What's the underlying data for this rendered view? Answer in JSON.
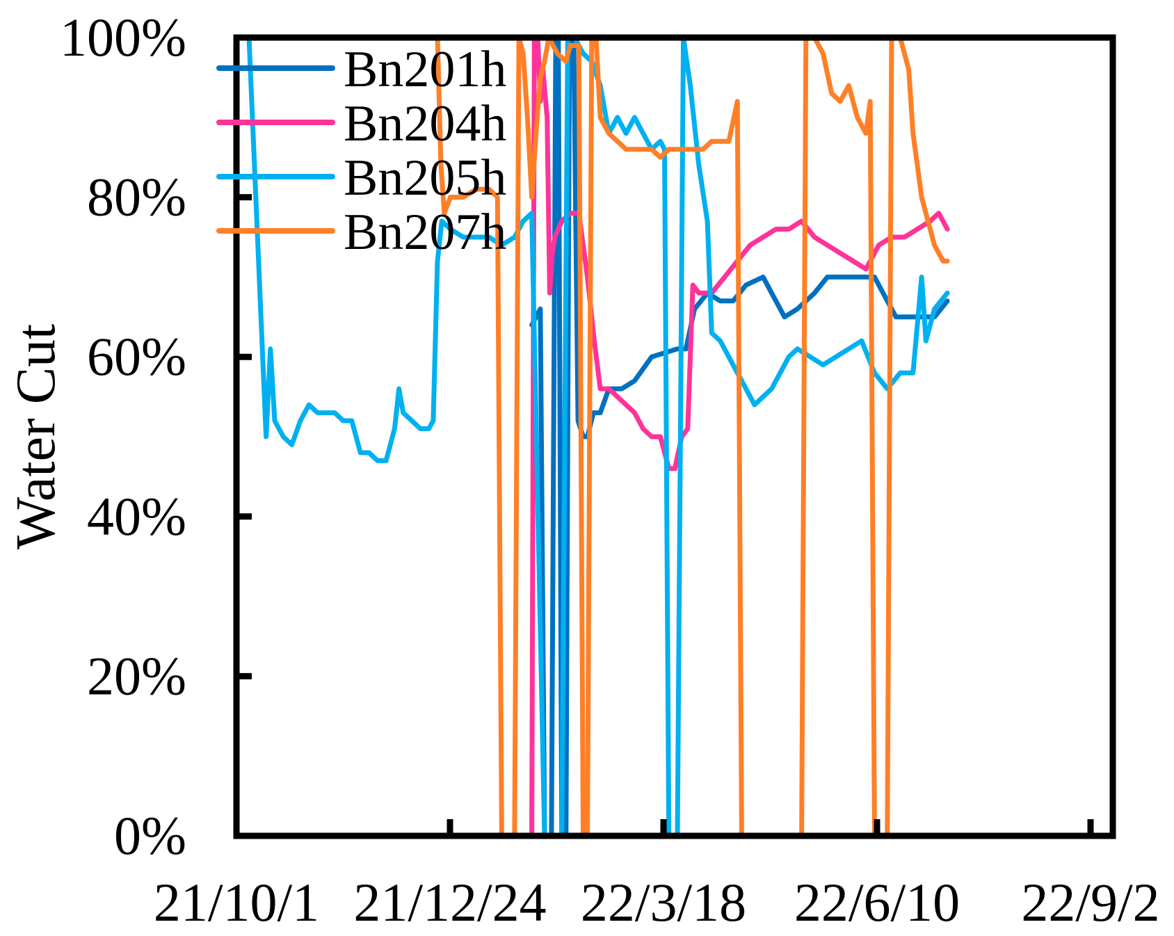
{
  "chart_data": {
    "type": "line",
    "ylabel": "Water Cut",
    "xlabel": "",
    "x_tick_labels": [
      "21/10/1",
      "21/12/24",
      "22/3/18",
      "22/6/10",
      "22/9/2"
    ],
    "y_tick_labels": [
      "0%",
      "20%",
      "40%",
      "60%",
      "80%",
      "100%"
    ],
    "ylim": [
      0,
      100
    ],
    "legend_position": "top-left",
    "grid": false,
    "series": [
      {
        "name": "Bn201h",
        "color": "#0070c0",
        "points": [
          [
            0.33,
            64
          ],
          [
            0.34,
            66
          ],
          [
            0.345,
            0
          ],
          [
            0.353,
            0
          ],
          [
            0.358,
            100
          ],
          [
            0.361,
            100
          ],
          [
            0.365,
            0
          ],
          [
            0.37,
            0
          ],
          [
            0.374,
            100
          ],
          [
            0.379,
            100
          ],
          [
            0.384,
            52
          ],
          [
            0.39,
            50
          ],
          [
            0.395,
            50
          ],
          [
            0.402,
            53
          ],
          [
            0.41,
            53
          ],
          [
            0.42,
            56
          ],
          [
            0.435,
            56
          ],
          [
            0.45,
            57
          ],
          [
            0.47,
            60
          ],
          [
            0.5,
            61
          ],
          [
            0.51,
            61
          ],
          [
            0.52,
            66
          ],
          [
            0.535,
            68
          ],
          [
            0.55,
            67
          ],
          [
            0.565,
            67
          ],
          [
            0.58,
            69
          ],
          [
            0.6,
            70
          ],
          [
            0.61,
            68
          ],
          [
            0.625,
            65
          ],
          [
            0.64,
            66
          ],
          [
            0.66,
            68
          ],
          [
            0.675,
            70
          ],
          [
            0.695,
            70
          ],
          [
            0.715,
            70
          ],
          [
            0.73,
            70
          ],
          [
            0.74,
            68
          ],
          [
            0.755,
            65
          ],
          [
            0.77,
            65
          ],
          [
            0.785,
            65
          ],
          [
            0.8,
            65
          ],
          [
            0.815,
            67
          ]
        ]
      },
      {
        "name": "Bn204h",
        "color": "#ff3399",
        "points": [
          [
            0.31,
            0
          ],
          [
            0.33,
            0
          ],
          [
            0.333,
            100
          ],
          [
            0.337,
            100
          ],
          [
            0.34,
            92
          ],
          [
            0.343,
            96
          ],
          [
            0.348,
            90
          ],
          [
            0.351,
            68
          ],
          [
            0.354,
            73
          ],
          [
            0.357,
            75
          ],
          [
            0.365,
            77
          ],
          [
            0.375,
            78
          ],
          [
            0.385,
            78
          ],
          [
            0.39,
            74
          ],
          [
            0.395,
            70
          ],
          [
            0.403,
            62
          ],
          [
            0.41,
            56
          ],
          [
            0.42,
            56
          ],
          [
            0.43,
            55
          ],
          [
            0.44,
            54
          ],
          [
            0.45,
            53
          ],
          [
            0.46,
            51
          ],
          [
            0.47,
            50
          ],
          [
            0.48,
            50
          ],
          [
            0.49,
            46
          ],
          [
            0.497,
            46
          ],
          [
            0.505,
            50
          ],
          [
            0.512,
            51
          ],
          [
            0.518,
            69
          ],
          [
            0.525,
            68
          ],
          [
            0.54,
            68
          ],
          [
            0.555,
            70
          ],
          [
            0.57,
            72
          ],
          [
            0.585,
            74
          ],
          [
            0.6,
            75
          ],
          [
            0.615,
            76
          ],
          [
            0.63,
            76
          ],
          [
            0.645,
            77
          ],
          [
            0.66,
            75
          ],
          [
            0.675,
            74
          ],
          [
            0.69,
            73
          ],
          [
            0.705,
            72
          ],
          [
            0.72,
            71
          ],
          [
            0.735,
            74
          ],
          [
            0.75,
            75
          ],
          [
            0.765,
            75
          ],
          [
            0.78,
            76
          ],
          [
            0.795,
            77
          ],
          [
            0.805,
            78
          ],
          [
            0.815,
            76
          ]
        ]
      },
      {
        "name": "Bn205h",
        "color": "#00b0f0",
        "points": [
          [
            0.0,
            100
          ],
          [
            0.01,
            75
          ],
          [
            0.02,
            50
          ],
          [
            0.025,
            61
          ],
          [
            0.03,
            52
          ],
          [
            0.04,
            50
          ],
          [
            0.05,
            49
          ],
          [
            0.06,
            52
          ],
          [
            0.07,
            54
          ],
          [
            0.08,
            53
          ],
          [
            0.09,
            53
          ],
          [
            0.1,
            53
          ],
          [
            0.11,
            52
          ],
          [
            0.12,
            52
          ],
          [
            0.13,
            48
          ],
          [
            0.14,
            48
          ],
          [
            0.15,
            47
          ],
          [
            0.16,
            47
          ],
          [
            0.17,
            51
          ],
          [
            0.175,
            56
          ],
          [
            0.18,
            53
          ],
          [
            0.19,
            52
          ],
          [
            0.2,
            51
          ],
          [
            0.21,
            51
          ],
          [
            0.215,
            52
          ],
          [
            0.22,
            72
          ],
          [
            0.225,
            77
          ],
          [
            0.235,
            76
          ],
          [
            0.25,
            75
          ],
          [
            0.265,
            75
          ],
          [
            0.28,
            75
          ],
          [
            0.295,
            74
          ],
          [
            0.31,
            75
          ],
          [
            0.32,
            77
          ],
          [
            0.33,
            78
          ],
          [
            0.345,
            0
          ],
          [
            0.365,
            0
          ],
          [
            0.372,
            100
          ],
          [
            0.38,
            100
          ],
          [
            0.39,
            98
          ],
          [
            0.4,
            97
          ],
          [
            0.41,
            94
          ],
          [
            0.42,
            88
          ],
          [
            0.43,
            90
          ],
          [
            0.44,
            88
          ],
          [
            0.45,
            90
          ],
          [
            0.46,
            88
          ],
          [
            0.47,
            86
          ],
          [
            0.48,
            87
          ],
          [
            0.485,
            86
          ],
          [
            0.49,
            0
          ],
          [
            0.5,
            0
          ],
          [
            0.507,
            100
          ],
          [
            0.515,
            94
          ],
          [
            0.525,
            84
          ],
          [
            0.535,
            77
          ],
          [
            0.54,
            63
          ],
          [
            0.55,
            62
          ],
          [
            0.56,
            60
          ],
          [
            0.57,
            58
          ],
          [
            0.58,
            56
          ],
          [
            0.59,
            54
          ],
          [
            0.6,
            55
          ],
          [
            0.61,
            56
          ],
          [
            0.62,
            58
          ],
          [
            0.63,
            60
          ],
          [
            0.64,
            61
          ],
          [
            0.655,
            60
          ],
          [
            0.67,
            59
          ],
          [
            0.685,
            60
          ],
          [
            0.7,
            61
          ],
          [
            0.715,
            62
          ],
          [
            0.73,
            58
          ],
          [
            0.745,
            56
          ],
          [
            0.76,
            58
          ],
          [
            0.775,
            58
          ],
          [
            0.785,
            70
          ],
          [
            0.79,
            62
          ],
          [
            0.8,
            66
          ],
          [
            0.815,
            68
          ]
        ]
      },
      {
        "name": "Bn207h",
        "color": "#ff7f27",
        "points": [
          [
            0.22,
            100
          ],
          [
            0.224,
            84
          ],
          [
            0.228,
            78
          ],
          [
            0.235,
            80
          ],
          [
            0.25,
            80
          ],
          [
            0.265,
            81
          ],
          [
            0.28,
            81
          ],
          [
            0.29,
            80
          ],
          [
            0.295,
            0
          ],
          [
            0.31,
            0
          ],
          [
            0.315,
            100
          ],
          [
            0.32,
            98
          ],
          [
            0.325,
            90
          ],
          [
            0.33,
            80
          ],
          [
            0.335,
            88
          ],
          [
            0.34,
            95
          ],
          [
            0.345,
            97
          ],
          [
            0.35,
            100
          ],
          [
            0.36,
            98
          ],
          [
            0.37,
            97
          ],
          [
            0.375,
            99
          ],
          [
            0.385,
            99
          ],
          [
            0.39,
            0
          ],
          [
            0.395,
            0
          ],
          [
            0.4,
            100
          ],
          [
            0.405,
            100
          ],
          [
            0.41,
            90
          ],
          [
            0.42,
            88
          ],
          [
            0.43,
            87
          ],
          [
            0.44,
            86
          ],
          [
            0.45,
            86
          ],
          [
            0.46,
            86
          ],
          [
            0.47,
            86
          ],
          [
            0.48,
            85
          ],
          [
            0.49,
            86
          ],
          [
            0.5,
            86
          ],
          [
            0.51,
            86
          ],
          [
            0.52,
            86
          ],
          [
            0.53,
            86
          ],
          [
            0.54,
            87
          ],
          [
            0.55,
            87
          ],
          [
            0.56,
            87
          ],
          [
            0.57,
            92
          ],
          [
            0.575,
            0
          ],
          [
            0.59,
            0
          ],
          [
            0.61,
            0
          ],
          [
            0.63,
            0
          ],
          [
            0.645,
            0
          ],
          [
            0.65,
            100
          ],
          [
            0.66,
            100
          ],
          [
            0.67,
            98
          ],
          [
            0.68,
            93
          ],
          [
            0.69,
            92
          ],
          [
            0.7,
            94
          ],
          [
            0.71,
            90
          ],
          [
            0.72,
            88
          ],
          [
            0.725,
            92
          ],
          [
            0.73,
            0
          ],
          [
            0.745,
            0
          ],
          [
            0.75,
            100
          ],
          [
            0.76,
            100
          ],
          [
            0.77,
            96
          ],
          [
            0.775,
            88
          ],
          [
            0.78,
            84
          ],
          [
            0.785,
            80
          ],
          [
            0.79,
            78
          ],
          [
            0.795,
            76
          ],
          [
            0.8,
            74
          ],
          [
            0.81,
            72
          ],
          [
            0.815,
            72
          ]
        ]
      }
    ]
  }
}
